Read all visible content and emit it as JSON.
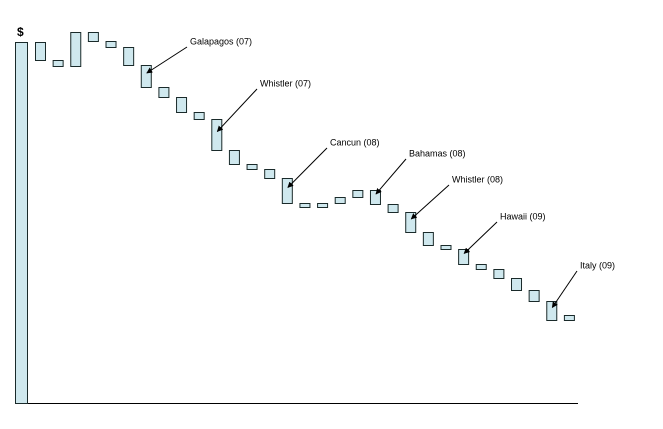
{
  "chart_data": {
    "type": "waterfall",
    "y_label": "$",
    "categories": [
      null,
      null,
      null,
      null,
      null,
      null,
      null,
      null,
      null,
      null,
      null,
      null,
      null,
      null,
      null,
      null,
      null,
      null,
      null,
      null,
      null,
      null,
      null,
      null,
      null,
      null,
      null,
      null,
      null,
      null,
      null,
      null
    ],
    "values": [
      361,
      -18,
      -6,
      34,
      -9,
      -6,
      -18,
      -22,
      -10,
      -15,
      -7,
      -31,
      -14,
      -5,
      -9,
      -25,
      -4,
      4,
      6,
      7,
      -14,
      -8,
      -20,
      -13,
      -4,
      -15,
      -5,
      -9,
      -12,
      -11,
      -19,
      5
    ],
    "color": "#cfe8ee",
    "edge_color": "#1a2a2a",
    "ylim": [
      0,
      361
    ],
    "annotations": [
      "Galapagos (07)",
      "Whistler (07)",
      "Cancun (08)",
      "Bahamas (08)",
      "Whistler (08)",
      "Hawaii (09)",
      "Italy (09)"
    ]
  }
}
